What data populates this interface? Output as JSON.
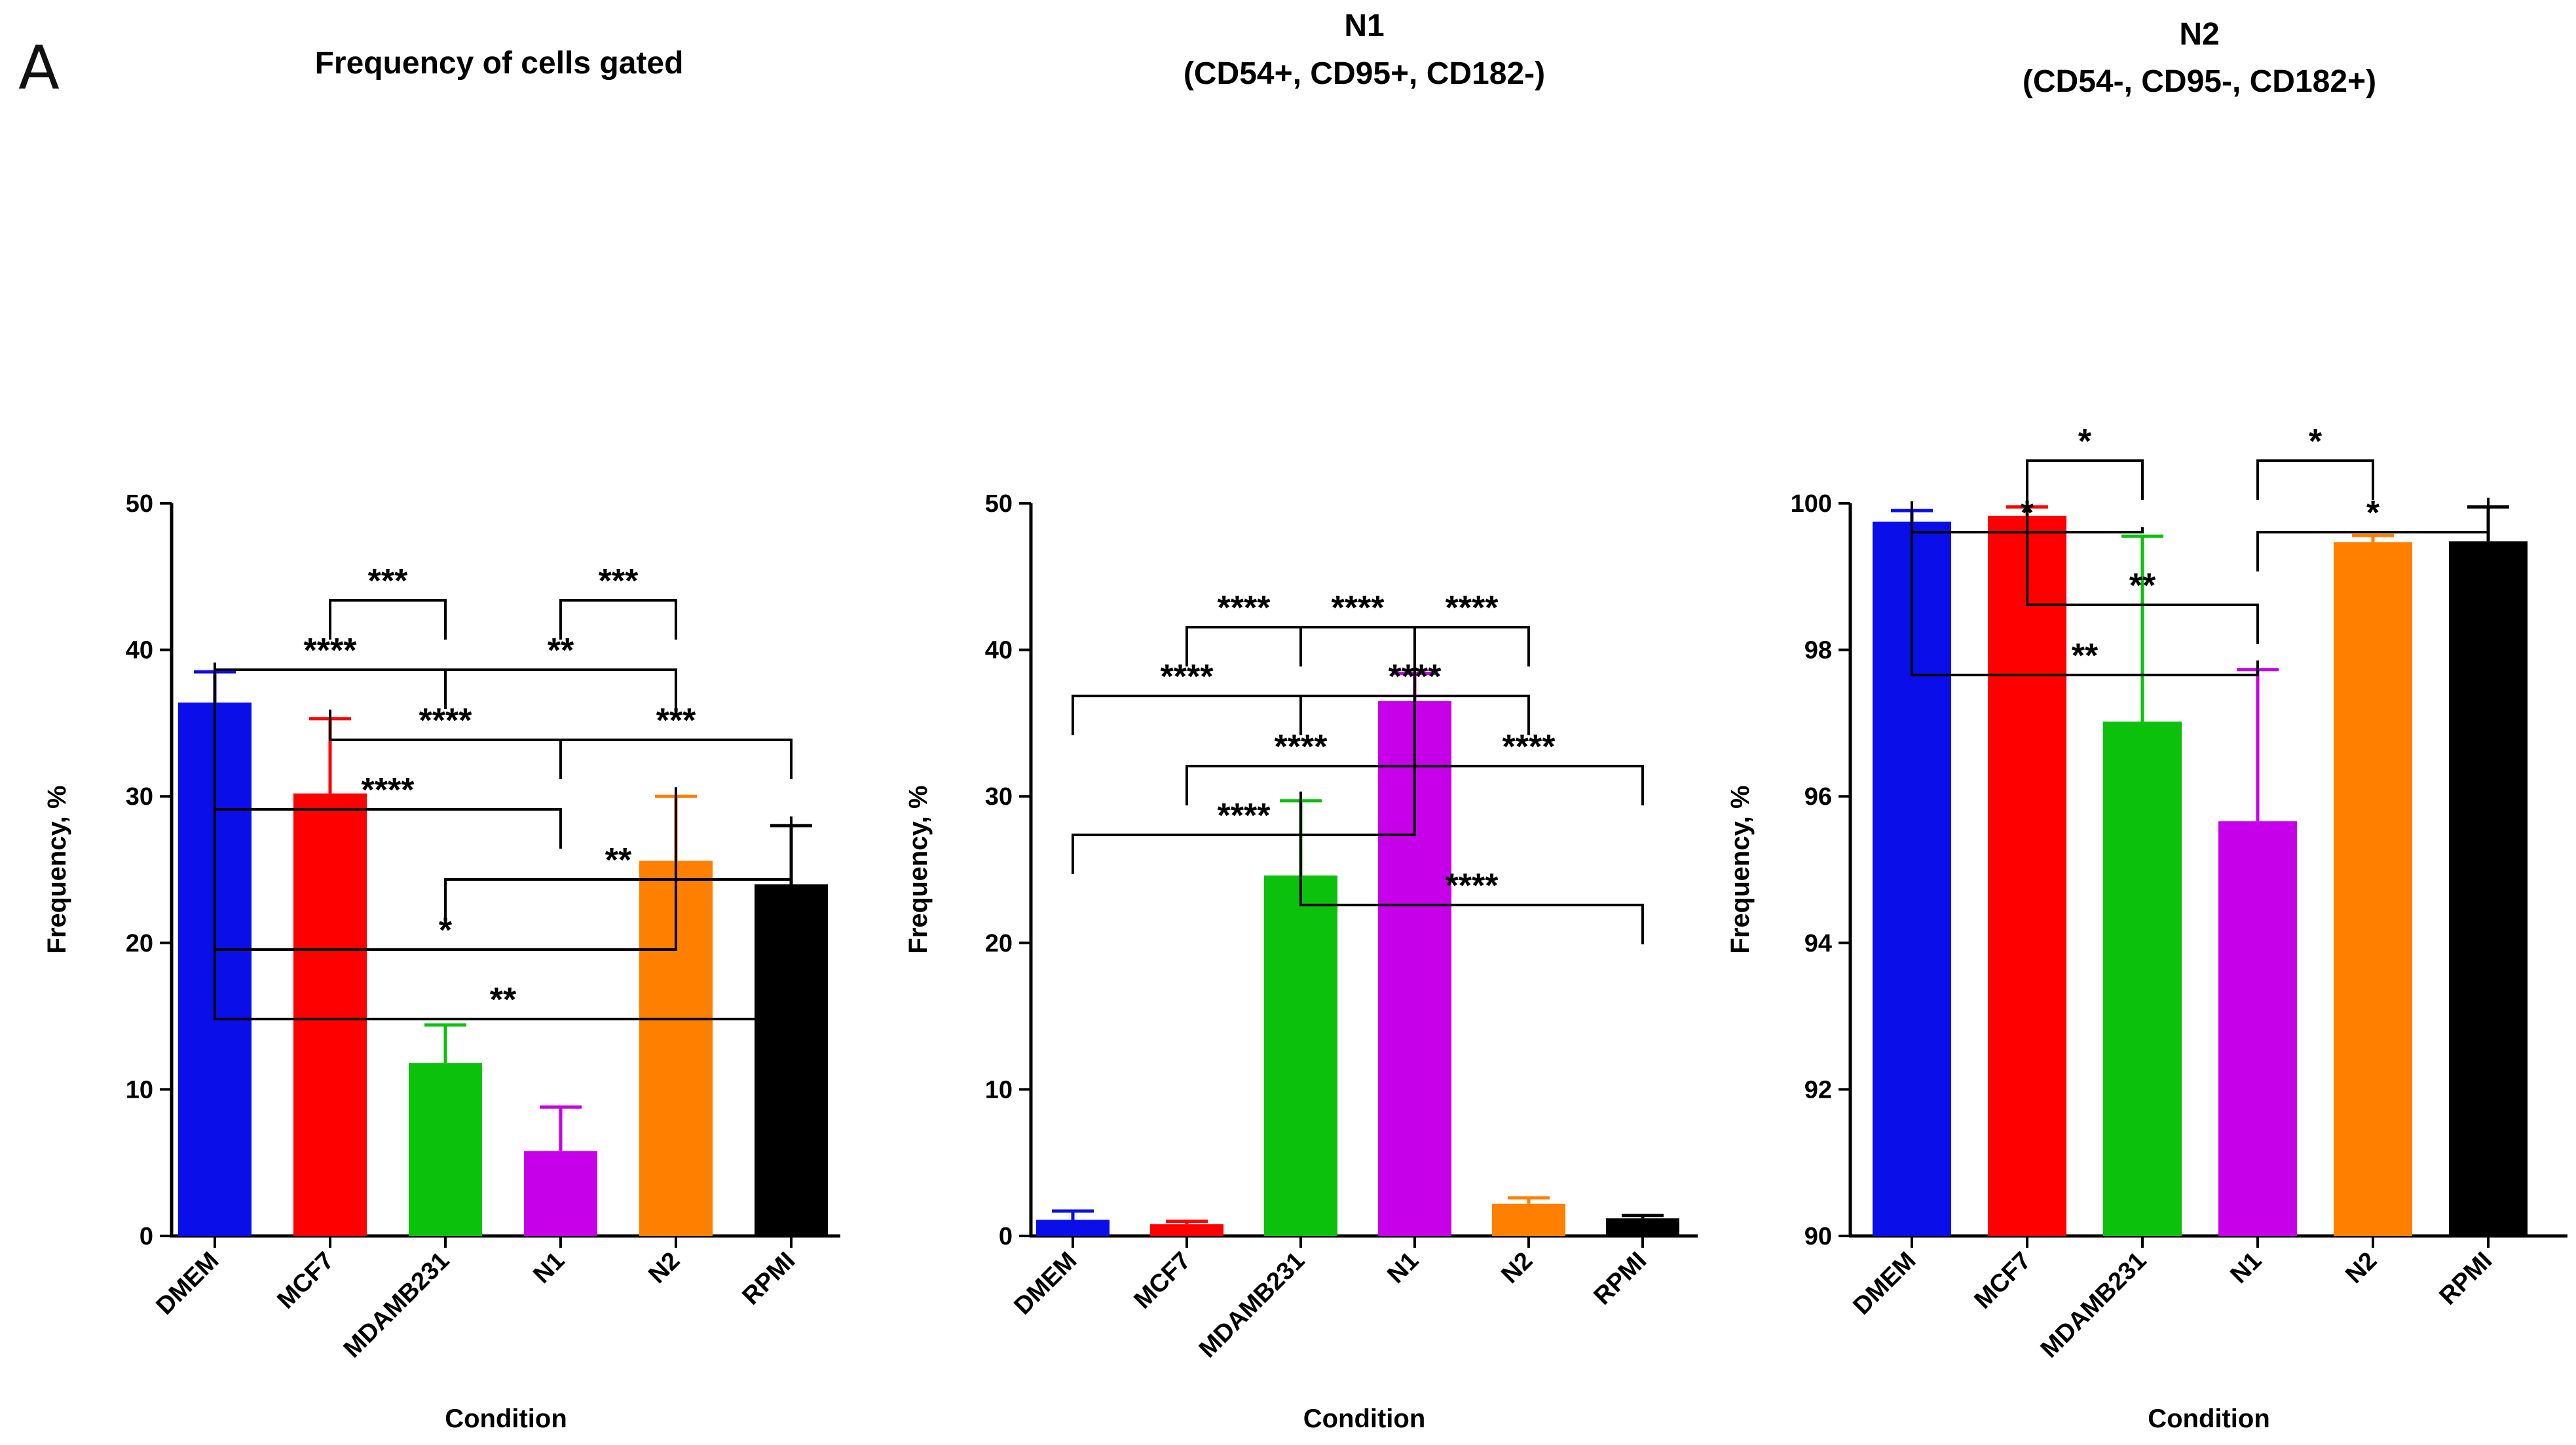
{
  "figure": {
    "panel_letter": "A"
  },
  "chart_data": [
    {
      "type": "bar",
      "title": "Frequency of cells gated",
      "title_line2": "",
      "xlabel": "Condition",
      "ylabel": "Frequency, %",
      "ylim": [
        0,
        50
      ],
      "yticks": [
        0,
        10,
        20,
        30,
        40,
        50
      ],
      "categories": [
        "DMEM",
        "MCF7",
        "MDAMB231",
        "N1",
        "N2",
        "RPMI"
      ],
      "values": [
        36.4,
        30.2,
        11.8,
        5.8,
        25.6,
        24.0
      ],
      "errors": [
        2.1,
        5.1,
        2.6,
        3.0,
        4.4,
        4.0
      ],
      "colors": [
        "#0a0ee8",
        "#ff0000",
        "#0cc10c",
        "#c600e8",
        "#ff8000",
        "#000000"
      ],
      "comparisons": [
        {
          "from": 0,
          "to": 5,
          "label": "**",
          "level": 8
        },
        {
          "from": 0,
          "to": 4,
          "label": "*",
          "level": 7
        },
        {
          "from": 2,
          "to": 5,
          "label": "**",
          "level": 6
        },
        {
          "from": 0,
          "to": 3,
          "label": "****",
          "level": 5
        },
        {
          "from": 1,
          "to": 3,
          "label": "****",
          "level": 4
        },
        {
          "from": 3,
          "to": 5,
          "label": "***",
          "level": 4
        },
        {
          "from": 0,
          "to": 2,
          "label": "****",
          "level": 3
        },
        {
          "from": 2,
          "to": 4,
          "label": "**",
          "level": 3
        },
        {
          "from": 1,
          "to": 2,
          "label": "***",
          "level": 2
        },
        {
          "from": 3,
          "to": 4,
          "label": "***",
          "level": 2
        }
      ]
    },
    {
      "type": "bar",
      "title": "N1",
      "title_line2": "(CD54+, CD95+, CD182-)",
      "xlabel": "Condition",
      "ylabel": "Frequency, %",
      "ylim": [
        0,
        50
      ],
      "yticks": [
        0,
        10,
        20,
        30,
        40,
        50
      ],
      "categories": [
        "DMEM",
        "MCF7",
        "MDAMB231",
        "N1",
        "N2",
        "RPMI"
      ],
      "values": [
        1.1,
        0.8,
        24.6,
        36.5,
        2.2,
        1.2
      ],
      "errors": [
        0.6,
        0.2,
        5.1,
        1.9,
        0.4,
        0.2
      ],
      "colors": [
        "#0a0ee8",
        "#ff0000",
        "#0cc10c",
        "#c600e8",
        "#ff8000",
        "#000000"
      ],
      "comparisons": [
        {
          "from": 2,
          "to": 5,
          "label": "****",
          "level": 6
        },
        {
          "from": 0,
          "to": 3,
          "label": "****",
          "level": 5
        },
        {
          "from": 1,
          "to": 3,
          "label": "****",
          "level": 4
        },
        {
          "from": 3,
          "to": 5,
          "label": "****",
          "level": 4
        },
        {
          "from": 0,
          "to": 2,
          "label": "****",
          "level": 3
        },
        {
          "from": 2,
          "to": 4,
          "label": "****",
          "level": 3
        },
        {
          "from": 1,
          "to": 2,
          "label": "****",
          "level": 2
        },
        {
          "from": 2,
          "to": 3,
          "label": "****",
          "level": 2
        },
        {
          "from": 3,
          "to": 4,
          "label": "****",
          "level": 2
        }
      ]
    },
    {
      "type": "bar",
      "title": "N2",
      "title_line2": "(CD54-, CD95-, CD182+)",
      "xlabel": "Condition",
      "ylabel": "Frequency, %",
      "ylim": [
        90,
        100
      ],
      "yticks": [
        90,
        92,
        94,
        96,
        98,
        100
      ],
      "categories": [
        "DMEM",
        "MCF7",
        "MDAMB231",
        "N1",
        "N2",
        "RPMI"
      ],
      "values": [
        99.75,
        99.83,
        97.02,
        95.66,
        99.47,
        99.48
      ],
      "errors": [
        0.15,
        0.12,
        2.53,
        2.07,
        0.09,
        0.47
      ],
      "colors": [
        "#0a0ee8",
        "#ff0000",
        "#0cc10c",
        "#c600e8",
        "#ff8000",
        "#000000"
      ],
      "comparisons": [
        {
          "from": 0,
          "to": 3,
          "label": "**",
          "level": 5
        },
        {
          "from": 1,
          "to": 3,
          "label": "**",
          "level": 4
        },
        {
          "from": 0,
          "to": 2,
          "label": "*",
          "level": 3
        },
        {
          "from": 3,
          "to": 5,
          "label": "*",
          "level": 3
        },
        {
          "from": 1,
          "to": 2,
          "label": "*",
          "level": 2
        },
        {
          "from": 3,
          "to": 4,
          "label": "*",
          "level": 2
        }
      ]
    }
  ]
}
